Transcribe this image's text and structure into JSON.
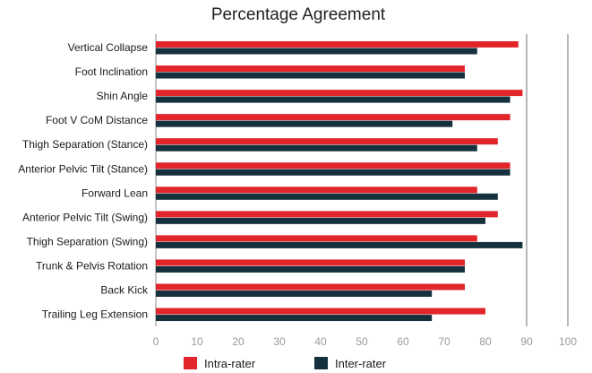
{
  "chart_data": {
    "type": "bar",
    "orientation": "horizontal",
    "title": "Percentage Agreement",
    "xlabel": "",
    "ylabel": "",
    "xlim": [
      0,
      100
    ],
    "xticks": [
      "0",
      "10",
      "20",
      "30",
      "40",
      "50",
      "60",
      "70",
      "80",
      "90",
      "100"
    ],
    "grid": "vertical lines at 90 and 100",
    "legend_position": "bottom",
    "categories": [
      "Vertical Collapse",
      "Foot Inclination",
      "Shin Angle",
      "Foot V CoM Distance",
      "Thigh Separation (Stance)",
      "Anterior Pelvic Tilt (Stance)",
      "Forward Lean",
      "Anterior Pelvic Tilt (Swing)",
      "Thigh Separation (Swing)",
      "Trunk & Pelvis Rotation",
      "Back Kick",
      "Trailing Leg Extension"
    ],
    "series": [
      {
        "name": "Intra-rater",
        "color": "#e1252b",
        "values": [
          88,
          75,
          89,
          86,
          83,
          86,
          78,
          83,
          78,
          75,
          75,
          80
        ]
      },
      {
        "name": "Inter-rater",
        "color": "#15313d",
        "values": [
          78,
          75,
          86,
          72,
          78,
          86,
          83,
          80,
          89,
          75,
          67,
          67
        ]
      }
    ]
  }
}
